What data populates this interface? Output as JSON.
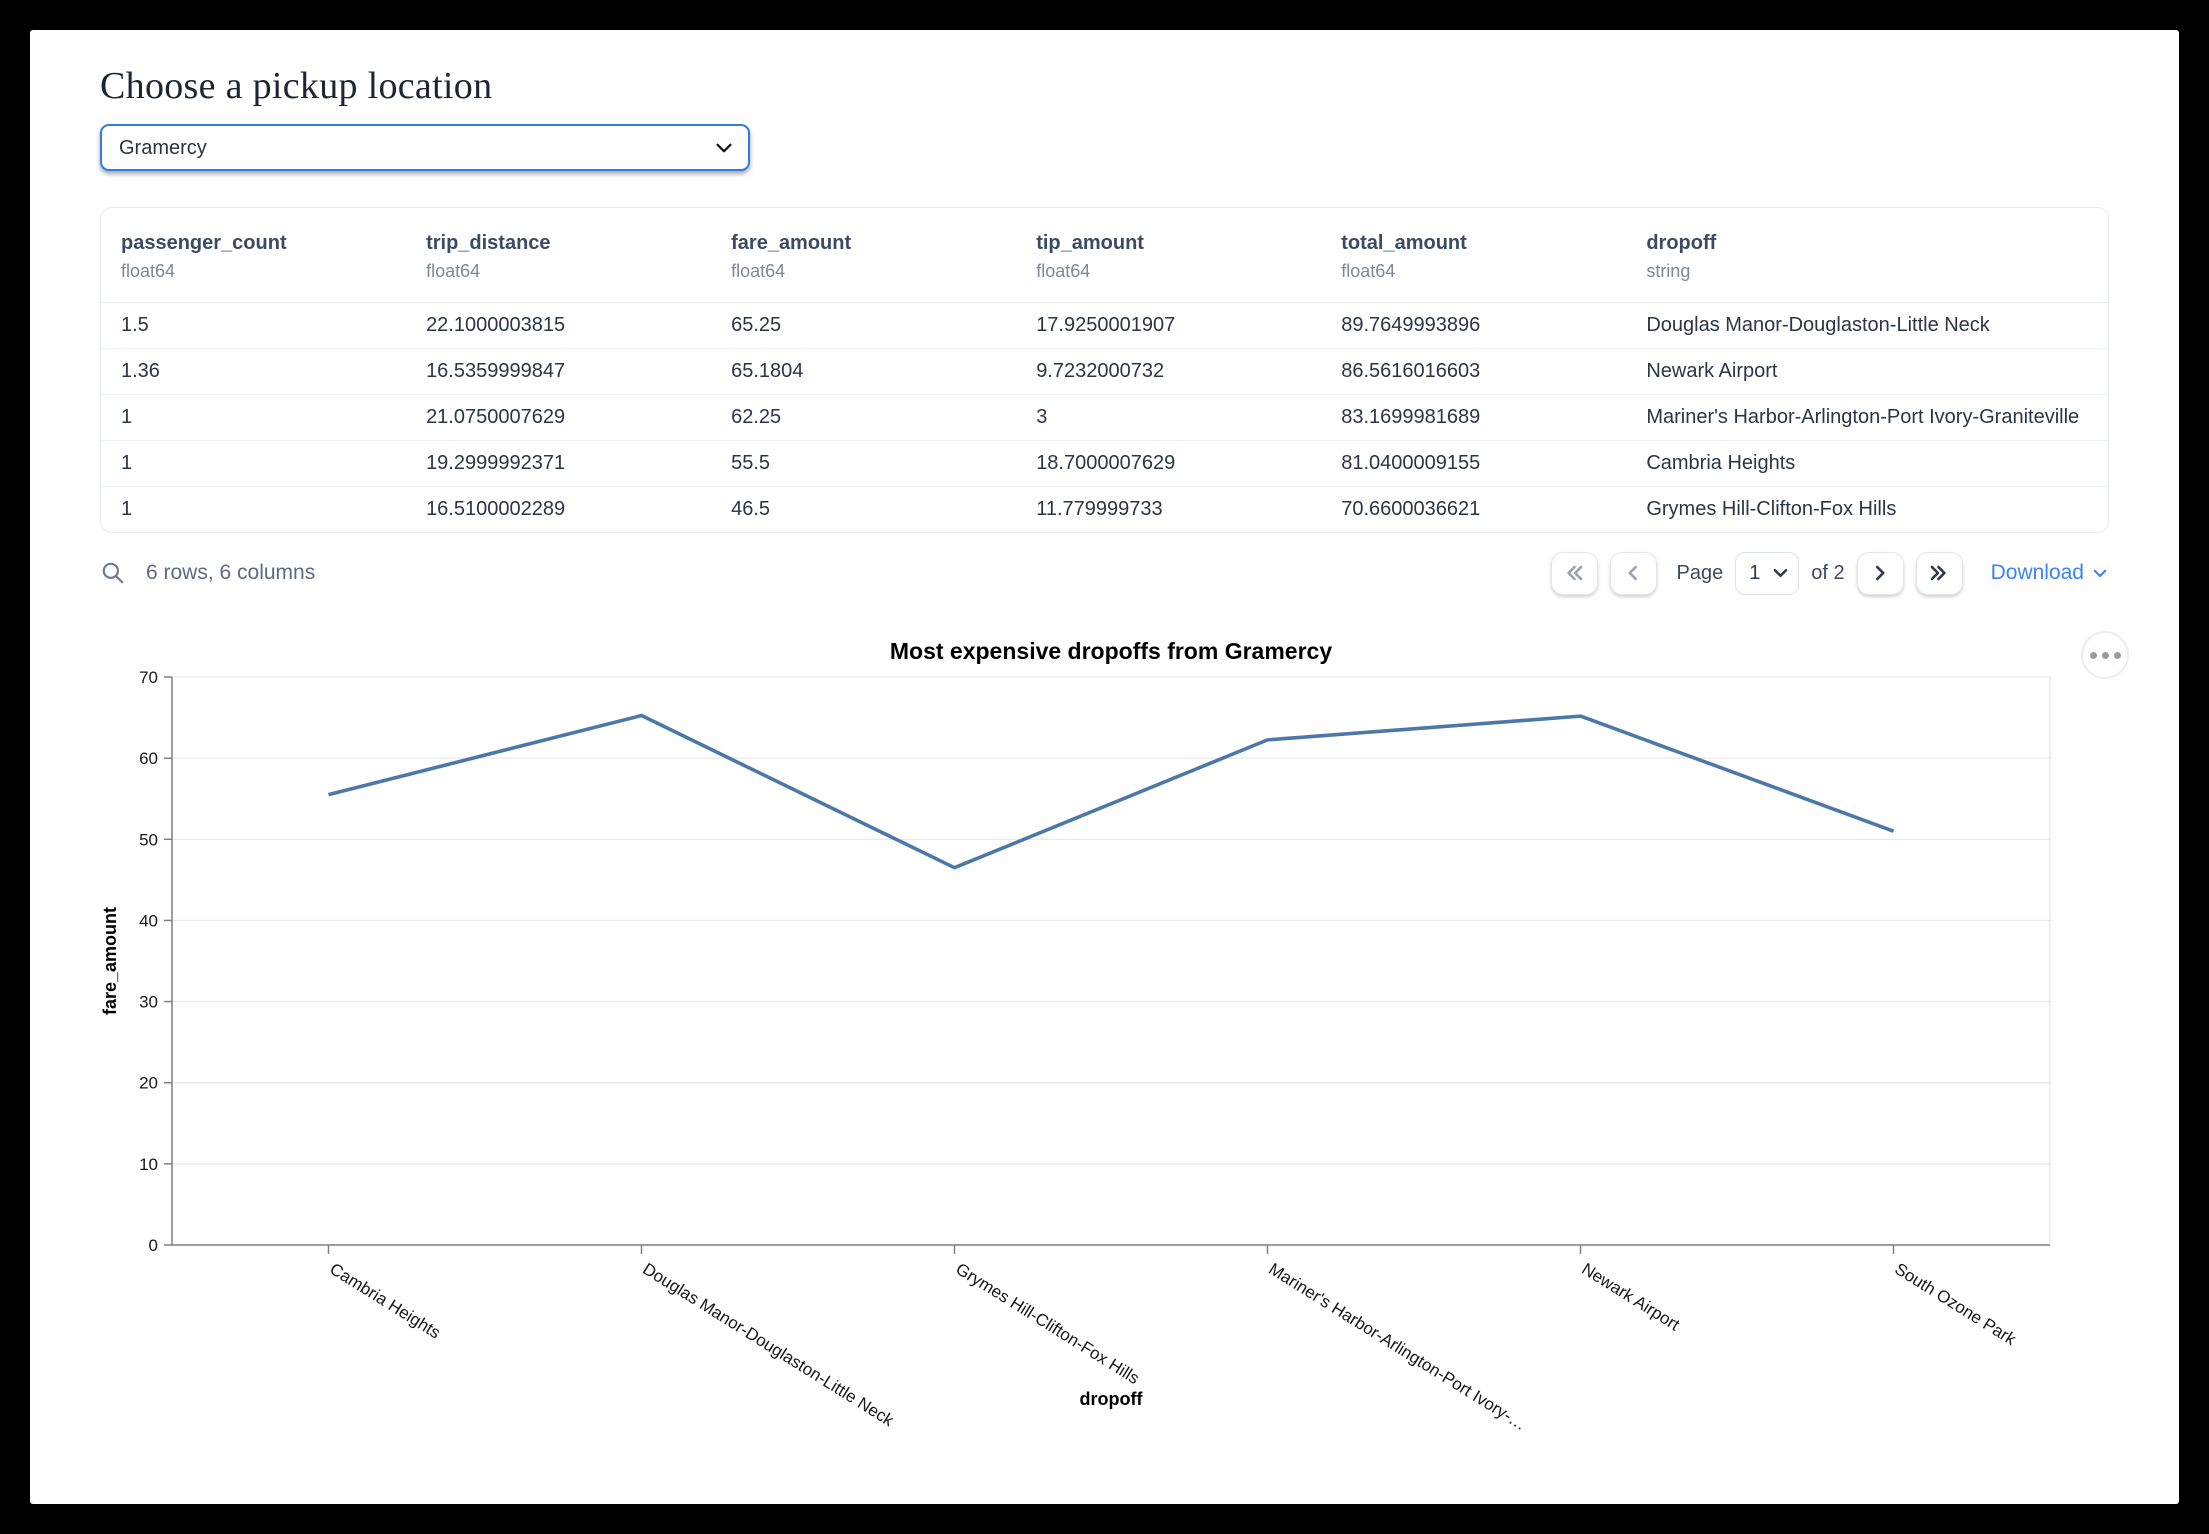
{
  "page": {
    "title": "Choose a pickup location"
  },
  "colors": {
    "accent": "#3b82f6",
    "line": "#4c78a8"
  },
  "pickup_select": {
    "value": "Gramercy",
    "options": [
      "Gramercy"
    ]
  },
  "table": {
    "columns": [
      {
        "name": "passenger_count",
        "dtype": "float64"
      },
      {
        "name": "trip_distance",
        "dtype": "float64"
      },
      {
        "name": "fare_amount",
        "dtype": "float64"
      },
      {
        "name": "tip_amount",
        "dtype": "float64"
      },
      {
        "name": "total_amount",
        "dtype": "float64"
      },
      {
        "name": "dropoff",
        "dtype": "string"
      }
    ],
    "rows": [
      [
        "1.5",
        "22.1000003815",
        "65.25",
        "17.9250001907",
        "89.7649993896",
        "Douglas Manor-Douglaston-Little Neck"
      ],
      [
        "1.36",
        "16.5359999847",
        "65.1804",
        "9.7232000732",
        "86.5616016603",
        "Newark Airport"
      ],
      [
        "1",
        "21.0750007629",
        "62.25",
        "3",
        "83.1699981689",
        "Mariner's Harbor-Arlington-Port Ivory-Graniteville"
      ],
      [
        "1",
        "19.2999992371",
        "55.5",
        "18.7000007629",
        "81.0400009155",
        "Cambria Heights"
      ],
      [
        "1",
        "16.5100002289",
        "46.5",
        "11.779999733",
        "70.6600036621",
        "Grymes Hill-Clifton-Fox Hills"
      ]
    ],
    "summary": "6 rows, 6 columns",
    "pagination": {
      "page_label": "Page",
      "current_page": "1",
      "of_label": "of 2",
      "download_label": "Download"
    }
  },
  "chart_data": {
    "type": "line",
    "title": "Most expensive dropoffs from Gramercy",
    "xlabel": "dropoff",
    "ylabel": "fare_amount",
    "categories": [
      "Cambria Heights",
      "Douglas Manor-Douglaston-Little Neck",
      "Grymes Hill-Clifton-Fox Hills",
      "Mariner's Harbor-Arlington-Port Ivory-Graniteville",
      "Newark Airport",
      "South Ozone Park"
    ],
    "tick_labels": [
      "Cambria Heights",
      "Douglas Manor-Douglaston-Little Neck",
      "Grymes Hill-Clifton-Fox Hills",
      "Mariner's Harbor-Arlington-Port Ivory-…",
      "Newark Airport",
      "South Ozone Park"
    ],
    "values": [
      55.5,
      65.25,
      46.5,
      62.25,
      65.1804,
      51
    ],
    "ylim": [
      0,
      70
    ],
    "yticks": [
      0,
      10,
      20,
      30,
      40,
      50,
      60,
      70
    ],
    "grid": true,
    "legend": "none",
    "label_angle": 32,
    "line_color": "#4c78a8"
  }
}
